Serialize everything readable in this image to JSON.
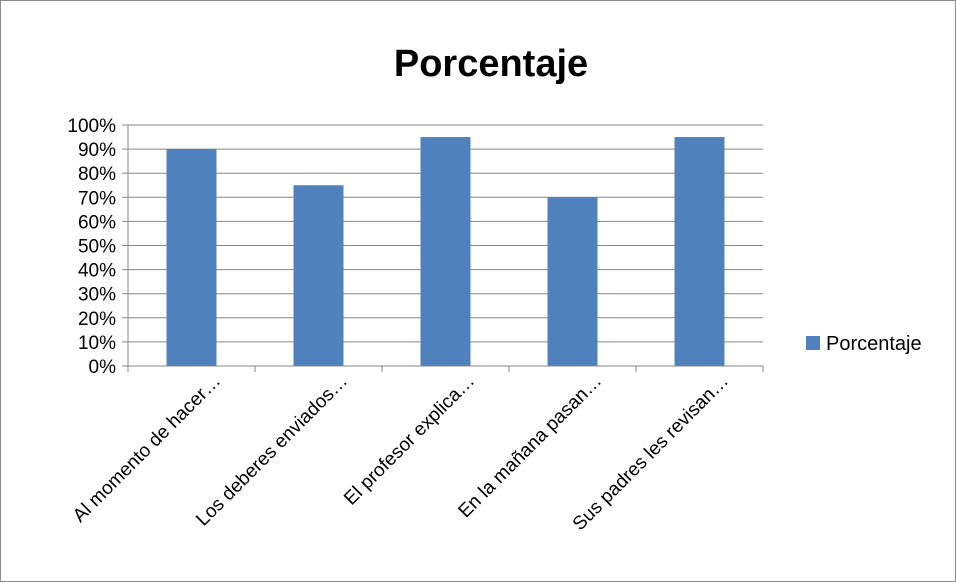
{
  "chart_data": {
    "type": "bar",
    "title": "Porcentaje",
    "categories": [
      "Al momento de hacer…",
      "Los deberes enviados…",
      "El profesor explica…",
      "En la mañana pasan…",
      "Sus padres les revisan…"
    ],
    "series": [
      {
        "name": "Porcentaje",
        "values": [
          90,
          75,
          95,
          70,
          95
        ],
        "color": "#4f81bd"
      }
    ],
    "ylim": [
      0,
      100
    ],
    "y_ticks": [
      "0%",
      "10%",
      "20%",
      "30%",
      "40%",
      "50%",
      "60%",
      "70%",
      "80%",
      "90%",
      "100%"
    ],
    "grid": true,
    "legend_position": "right"
  }
}
